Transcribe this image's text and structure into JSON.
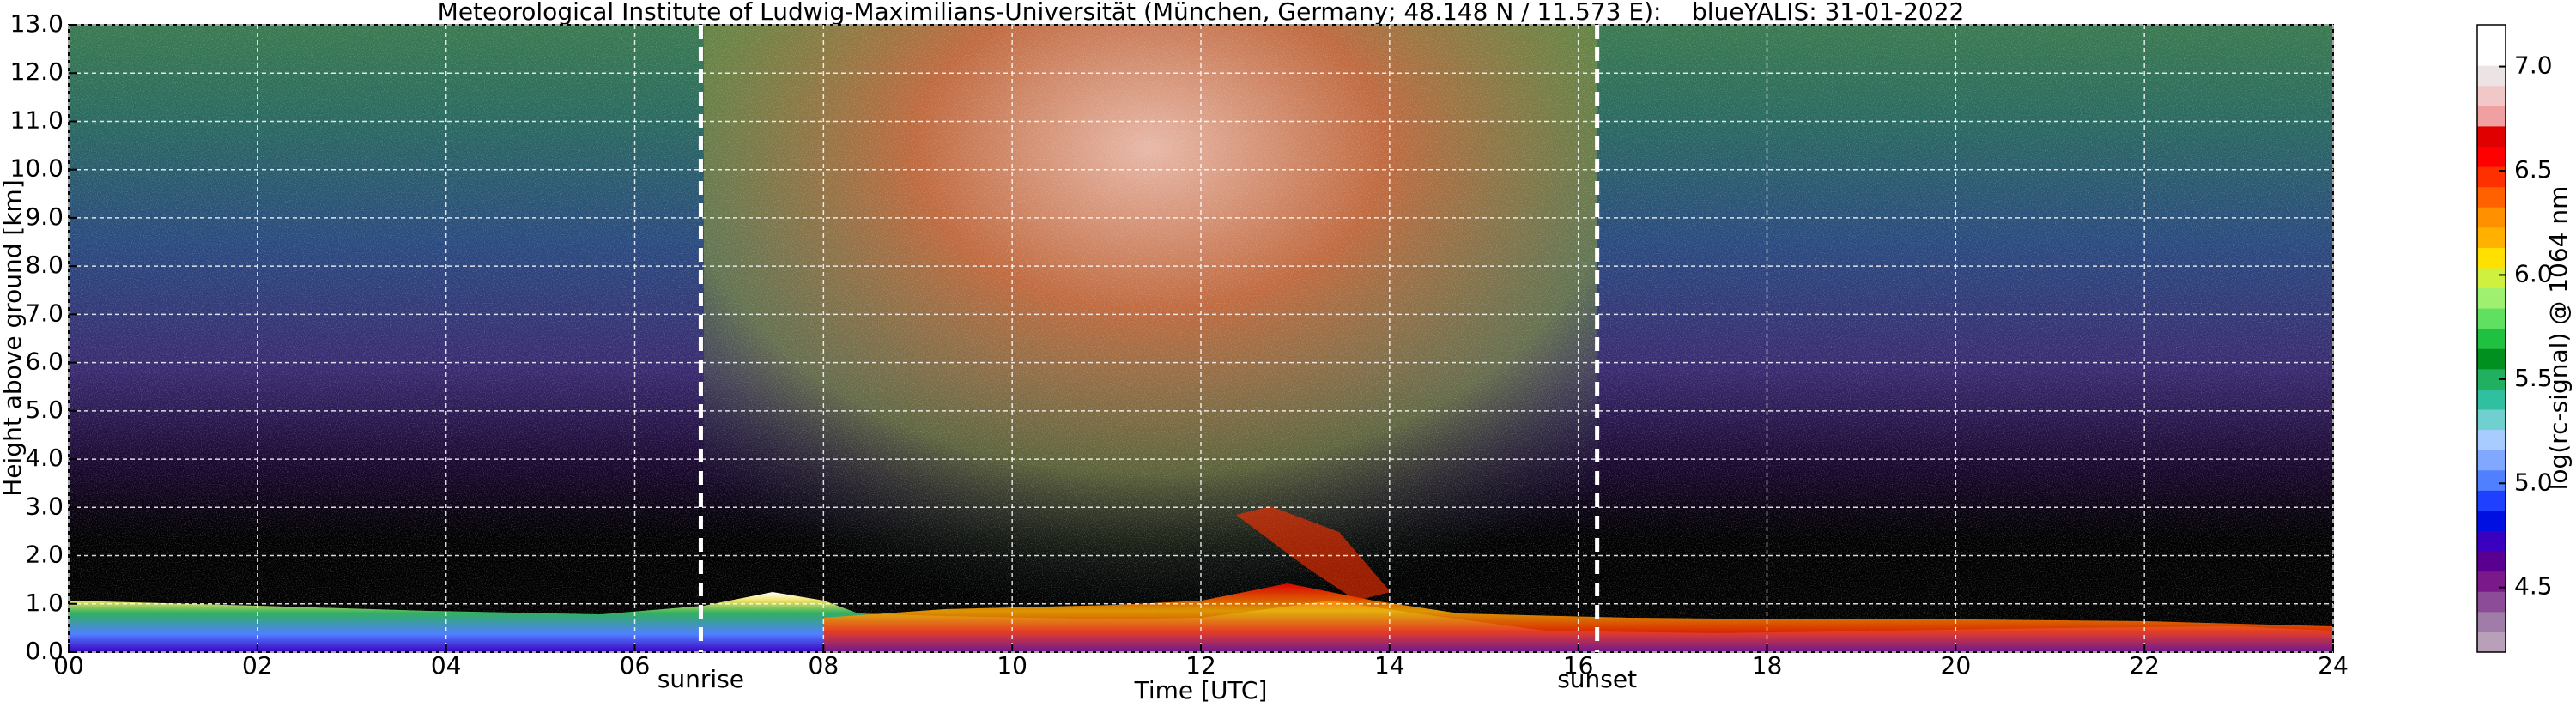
{
  "chart_data": {
    "type": "heatmap",
    "title": "Meteorological Institute of Ludwig-Maximilians-Universität (München, Germany; 48.148 N / 11.573 E):    blueYALIS: 31-01-2022",
    "x_label": "Time [UTC]",
    "y_label": "Height above ground [km]",
    "colorbar_label": "log(rc-signal) @ 1064 nm",
    "xlim": [
      0,
      24
    ],
    "xticks": [
      {
        "value": 0,
        "label": "00"
      },
      {
        "value": 2,
        "label": "02"
      },
      {
        "value": 4,
        "label": "04"
      },
      {
        "value": 6,
        "label": "06"
      },
      {
        "value": 8,
        "label": "08"
      },
      10,
      12,
      14,
      16,
      18,
      20,
      22,
      24
    ],
    "ylim": [
      0,
      13
    ],
    "yticks": [
      {
        "value": 0,
        "label": "0.0"
      },
      {
        "value": 1,
        "label": "1.0"
      },
      {
        "value": 2,
        "label": "2.0"
      },
      {
        "value": 3,
        "label": "3.0"
      },
      {
        "value": 4,
        "label": "4.0"
      },
      {
        "value": 5,
        "label": "5.0"
      },
      {
        "value": 6,
        "label": "6.0"
      },
      {
        "value": 7,
        "label": "7.0"
      },
      {
        "value": 8,
        "label": "8.0"
      },
      {
        "value": 9,
        "label": "9.0"
      },
      {
        "value": 10,
        "label": "10.0"
      },
      {
        "value": 11,
        "label": "11.0"
      },
      {
        "value": 12,
        "label": "12.0"
      },
      {
        "value": 13,
        "label": "13.0"
      }
    ],
    "clim": [
      4.19,
      7.2
    ],
    "cticks": [
      4.5,
      {
        "value": 5,
        "label": "5.0"
      },
      5.5,
      {
        "value": 6,
        "label": "6.0"
      },
      6.5,
      {
        "value": 7,
        "label": "7.0"
      }
    ],
    "colormap": [
      "#b8a0b8",
      "#a07ca8",
      "#8c4c98",
      "#7a1a8a",
      "#5a0090",
      "#3a00c0",
      "#0010e0",
      "#2040ff",
      "#5080ff",
      "#80a8ff",
      "#a8ccff",
      "#70d0d0",
      "#30c0a0",
      "#20b060",
      "#009020",
      "#20c040",
      "#60e060",
      "#a0f070",
      "#d0f040",
      "#ffe000",
      "#ffb000",
      "#ff9000",
      "#ff6000",
      "#ff3000",
      "#ff0000",
      "#e00000",
      "#f0a0a0",
      "#f0c8c8",
      "#ece4e4",
      "#ffffff",
      "#ffffff"
    ],
    "grid": true,
    "markers": [
      {
        "x": 6.7,
        "label": "sunrise"
      },
      {
        "x": 16.2,
        "label": "sunset"
      }
    ]
  }
}
